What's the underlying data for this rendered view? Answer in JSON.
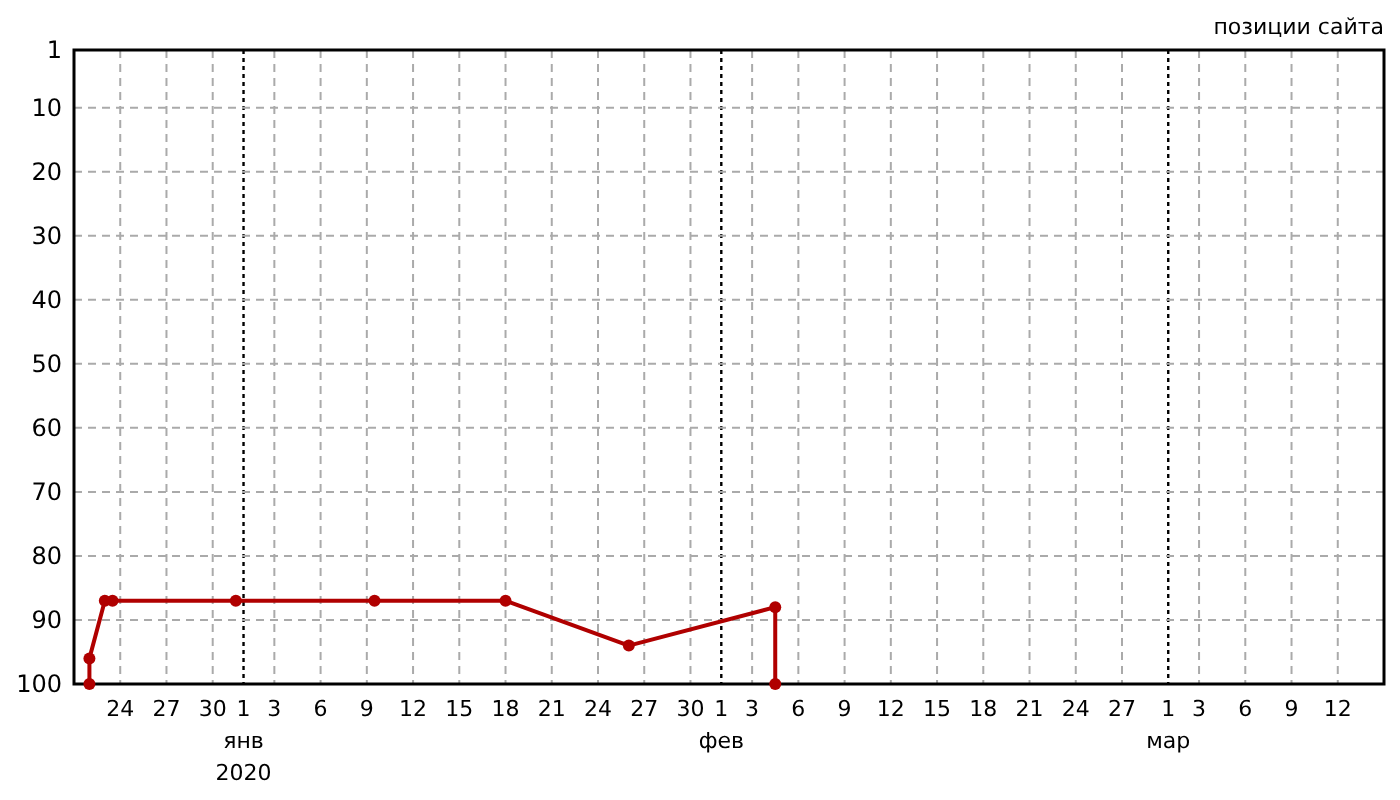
{
  "chart_data": {
    "type": "line",
    "title": "позиции сайта",
    "series": [
      {
        "color": "#b00000",
        "x": [
          "2019-12-22T00:00",
          "2019-12-22T00:00",
          "2019-12-23T00:00",
          "2019-12-23T12:00",
          "2019-12-31T12:00",
          "2020-01-09T12:00",
          "2020-01-18T00:00",
          "2020-01-26T00:00",
          "2020-02-04T12:00",
          "2020-02-04T12:00"
        ],
        "values": [
          100,
          96,
          87,
          87,
          87,
          87,
          87,
          94,
          88,
          100
        ]
      }
    ],
    "xlim": [
      "2019-12-21",
      "2020-03-15"
    ],
    "xticks": [
      {
        "value": "2019-12-24",
        "label": "24"
      },
      {
        "value": "2019-12-27",
        "label": "27"
      },
      {
        "value": "2019-12-30",
        "label": "30"
      },
      {
        "value": "2020-01-01",
        "label": "1\nянв\n2020"
      },
      {
        "value": "2020-01-03",
        "label": "3"
      },
      {
        "value": "2020-01-06",
        "label": "6"
      },
      {
        "value": "2020-01-09",
        "label": "9"
      },
      {
        "value": "2020-01-12",
        "label": "12"
      },
      {
        "value": "2020-01-15",
        "label": "15"
      },
      {
        "value": "2020-01-18",
        "label": "18"
      },
      {
        "value": "2020-01-21",
        "label": "21"
      },
      {
        "value": "2020-01-24",
        "label": "24"
      },
      {
        "value": "2020-01-27",
        "label": "27"
      },
      {
        "value": "2020-01-30",
        "label": "30"
      },
      {
        "value": "2020-02-01",
        "label": "1\nфев"
      },
      {
        "value": "2020-02-03",
        "label": "3"
      },
      {
        "value": "2020-02-06",
        "label": "6"
      },
      {
        "value": "2020-02-09",
        "label": "9"
      },
      {
        "value": "2020-02-12",
        "label": "12"
      },
      {
        "value": "2020-02-15",
        "label": "15"
      },
      {
        "value": "2020-02-18",
        "label": "18"
      },
      {
        "value": "2020-02-21",
        "label": "21"
      },
      {
        "value": "2020-02-24",
        "label": "24"
      },
      {
        "value": "2020-02-27",
        "label": "27"
      },
      {
        "value": "2020-03-01",
        "label": "1\nмар"
      },
      {
        "value": "2020-03-03",
        "label": "3"
      },
      {
        "value": "2020-03-06",
        "label": "6"
      },
      {
        "value": "2020-03-09",
        "label": "9"
      },
      {
        "value": "2020-03-12",
        "label": "12"
      }
    ],
    "ylim": [
      100,
      1
    ],
    "yticks": [
      1,
      10,
      20,
      30,
      40,
      50,
      60,
      70,
      80,
      90,
      100
    ],
    "grid": true,
    "marker": "circle",
    "line_style": "solid"
  }
}
